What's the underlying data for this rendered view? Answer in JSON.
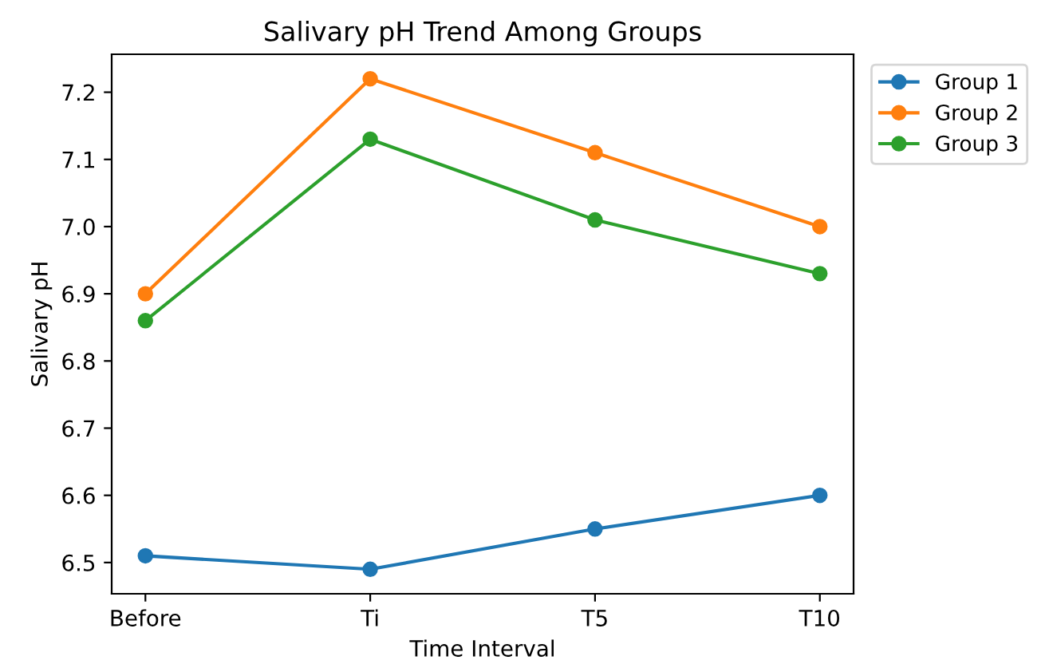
{
  "chart_data": {
    "type": "line",
    "title": "Salivary pH Trend Among Groups",
    "xlabel": "Time Interval",
    "ylabel": "Salivary pH",
    "categories": [
      "Before",
      "Ti",
      "T5",
      "T10"
    ],
    "series": [
      {
        "name": "Group 1",
        "color": "#1f77b4",
        "values": [
          6.51,
          6.49,
          6.55,
          6.6
        ]
      },
      {
        "name": "Group 2",
        "color": "#ff7f0e",
        "values": [
          6.9,
          7.22,
          7.11,
          7.0
        ]
      },
      {
        "name": "Group 3",
        "color": "#2ca02c",
        "values": [
          6.86,
          7.13,
          7.01,
          6.93
        ]
      }
    ],
    "ylim": [
      6.4535,
      7.2565
    ],
    "yticks": [
      6.5,
      6.6,
      6.7,
      6.8,
      6.9,
      {
        "value": 7.0,
        "label": "7.0"
      },
      7.1,
      7.2
    ],
    "marker": "circle",
    "line_style": "solid",
    "legend": "top right",
    "grid": false
  }
}
